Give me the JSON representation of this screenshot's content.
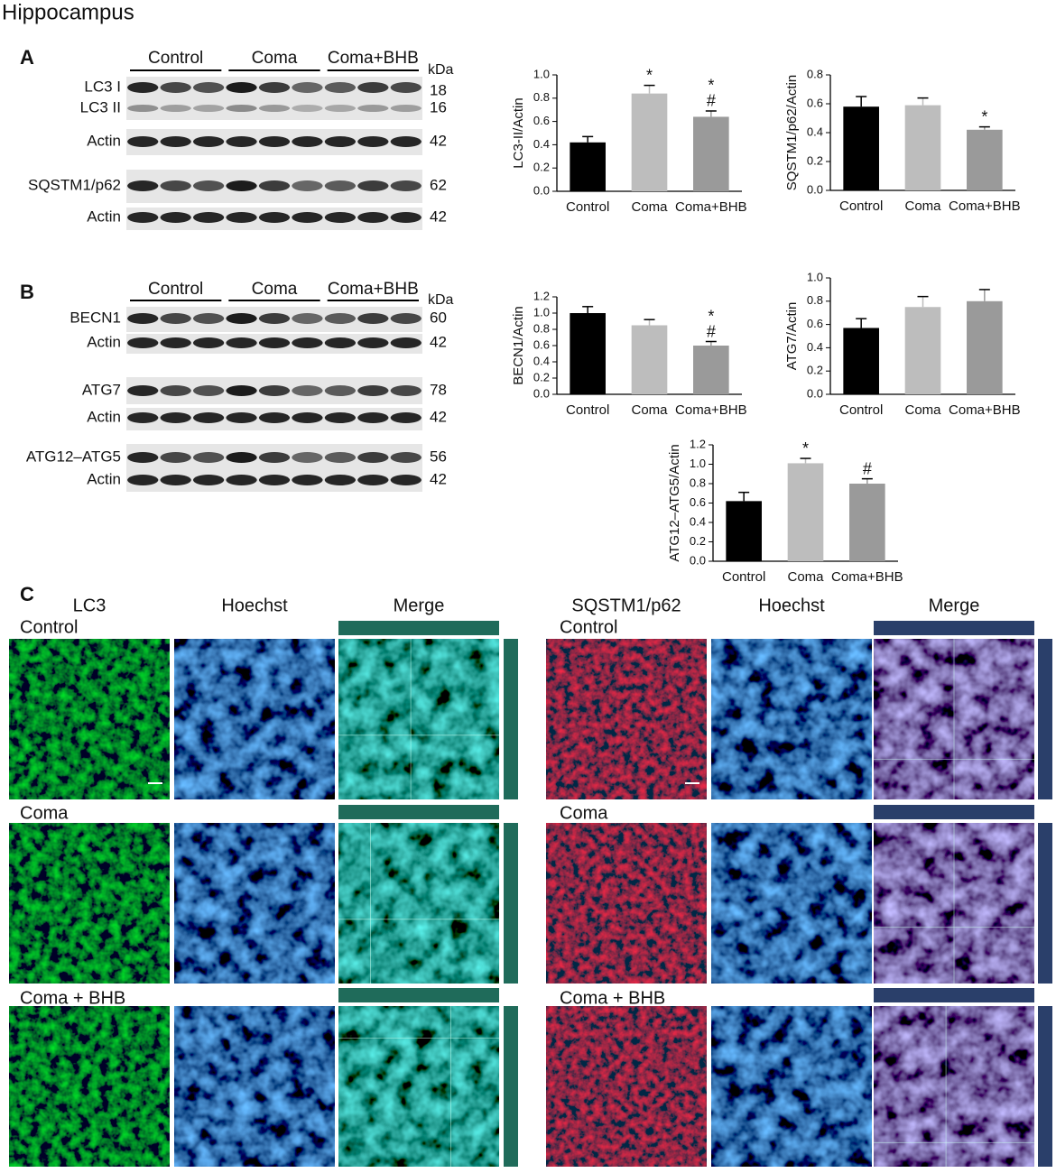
{
  "title": "Hippocampus",
  "blots": [
    {
      "letter": "A",
      "groups": [
        "Control",
        "Coma",
        "Coma+BHB"
      ],
      "unit": "kDa",
      "strips": [
        {
          "bands": [
            {
              "label": "LC3 I",
              "kda": 18
            },
            {
              "label": "LC3 II",
              "kda": 16
            }
          ]
        },
        {
          "bands": [
            {
              "label": "Actin",
              "kda": 42
            }
          ]
        },
        {
          "bands": [
            {
              "label": "SQSTM1/p62",
              "kda": 62
            }
          ]
        },
        {
          "bands": [
            {
              "label": "Actin",
              "kda": 42
            }
          ]
        }
      ]
    },
    {
      "letter": "B",
      "groups": [
        "Control",
        "Coma",
        "Coma+BHB"
      ],
      "unit": "kDa",
      "strips": [
        {
          "bands": [
            {
              "label": "BECN1",
              "kda": 60
            }
          ]
        },
        {
          "bands": [
            {
              "label": "Actin",
              "kda": 42
            }
          ]
        },
        {
          "bands": [
            {
              "label": "ATG7",
              "kda": 78
            }
          ]
        },
        {
          "bands": [
            {
              "label": "Actin",
              "kda": 42
            }
          ]
        },
        {
          "bands": [
            {
              "label": "ATG12–ATG5",
              "kda": 56
            }
          ]
        },
        {
          "bands": [
            {
              "label": "Actin",
              "kda": 42
            }
          ]
        }
      ]
    }
  ],
  "chart_data": [
    {
      "type": "bar",
      "ylabel": "LC3-II/Actin",
      "categories": [
        "Control",
        "Coma",
        "Coma+BHB"
      ],
      "values": [
        0.42,
        0.84,
        0.64
      ],
      "errors": [
        0.05,
        0.07,
        0.05
      ],
      "colors": [
        "#000000",
        "#bdbdbd",
        "#9a9a9a"
      ],
      "annotations": [
        [],
        [
          "*"
        ],
        [
          "*",
          "#"
        ]
      ],
      "ylim": [
        0,
        1
      ],
      "yticks": [
        {
          "value": 0,
          "label": "0.0"
        },
        0.2,
        0.4,
        0.6,
        0.8,
        {
          "value": 1,
          "label": "1.0"
        }
      ]
    },
    {
      "type": "bar",
      "ylabel": "SQSTM1/p62/Actin",
      "categories": [
        "Control",
        "Coma",
        "Coma+BHB"
      ],
      "values": [
        0.58,
        0.59,
        0.42
      ],
      "errors": [
        0.07,
        0.05,
        0.02
      ],
      "colors": [
        "#000000",
        "#bdbdbd",
        "#9a9a9a"
      ],
      "annotations": [
        [],
        [],
        [
          "*"
        ]
      ],
      "ylim": [
        0,
        0.8
      ],
      "yticks": [
        {
          "value": 0,
          "label": "0.0"
        },
        0.2,
        0.4,
        0.6,
        0.8
      ]
    },
    {
      "type": "bar",
      "ylabel": "BECN1/Actin",
      "categories": [
        "Control",
        "Coma",
        "Coma+BHB"
      ],
      "values": [
        1.0,
        0.85,
        0.6
      ],
      "errors": [
        0.08,
        0.07,
        0.05
      ],
      "colors": [
        "#000000",
        "#bdbdbd",
        "#9a9a9a"
      ],
      "annotations": [
        [],
        [],
        [
          "*",
          "#"
        ]
      ],
      "ylim": [
        0,
        1.2
      ],
      "yticks": [
        {
          "value": 0,
          "label": "0.0"
        },
        0.2,
        0.4,
        0.6,
        0.8,
        {
          "value": 1,
          "label": "1.0"
        },
        1.2
      ]
    },
    {
      "type": "bar",
      "ylabel": "ATG7/Actin",
      "categories": [
        "Control",
        "Coma",
        "Coma+BHB"
      ],
      "values": [
        0.57,
        0.75,
        0.8
      ],
      "errors": [
        0.08,
        0.09,
        0.1
      ],
      "colors": [
        "#000000",
        "#bdbdbd",
        "#9a9a9a"
      ],
      "annotations": [
        [],
        [],
        []
      ],
      "ylim": [
        0,
        1
      ],
      "yticks": [
        {
          "value": 0,
          "label": "0.0"
        },
        0.2,
        0.4,
        0.6,
        0.8,
        {
          "value": 1,
          "label": "1.0"
        }
      ]
    },
    {
      "type": "bar",
      "ylabel": "ATG12–ATG5/Actin",
      "categories": [
        "Control",
        "Coma",
        "Coma+BHB"
      ],
      "values": [
        0.62,
        1.01,
        0.8
      ],
      "errors": [
        0.09,
        0.05,
        0.05
      ],
      "colors": [
        "#000000",
        "#bdbdbd",
        "#9a9a9a"
      ],
      "annotations": [
        [],
        [
          "*"
        ],
        [
          "#"
        ]
      ],
      "ylim": [
        0,
        1.2
      ],
      "yticks": [
        {
          "value": 0,
          "label": "0.0"
        },
        0.2,
        0.4,
        0.6,
        0.8,
        {
          "value": 1,
          "label": "1.0"
        },
        1.2
      ]
    }
  ],
  "imaging": {
    "letter": "C",
    "panels": [
      {
        "columns": [
          "LC3",
          "Hoechst",
          "Merge"
        ],
        "rows": [
          "Control",
          "Coma",
          "Coma + BHB"
        ]
      },
      {
        "columns": [
          "SQSTM1/p62",
          "Hoechst",
          "Merge"
        ],
        "rows": [
          "Control",
          "Coma",
          "Coma + BHB"
        ]
      }
    ]
  }
}
